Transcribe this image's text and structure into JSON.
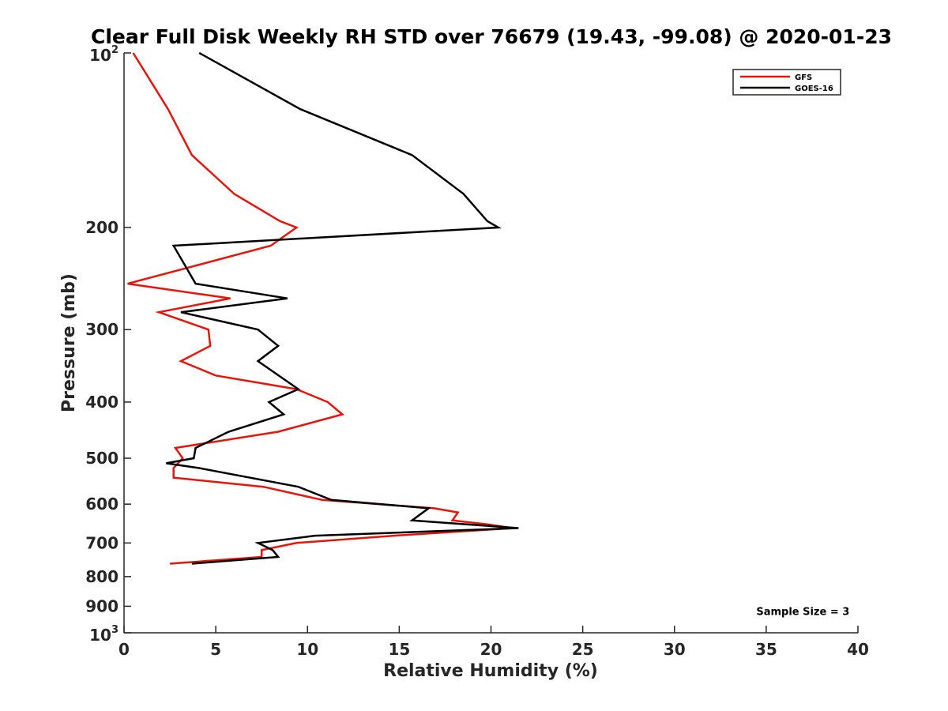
{
  "chart_data": {
    "type": "line",
    "title": "Clear Full Disk Weekly RH STD over 76679 (19.43, -99.08) @ 2020-01-23",
    "xlabel": "Relative Humidity (%)",
    "ylabel": "Pressure (mb)",
    "xlim": [
      0,
      40
    ],
    "ylim": [
      100,
      1000
    ],
    "y_scale": "log",
    "y_reversed": true,
    "grid": false,
    "legend_position": "top-right",
    "x_ticks": [
      0,
      5,
      10,
      15,
      20,
      25,
      30,
      35,
      40
    ],
    "x_tick_labels": [
      "0",
      "5",
      "10",
      "15",
      "20",
      "25",
      "30",
      "35",
      "40"
    ],
    "y_ticks": [
      {
        "value": 100,
        "base": "10",
        "exp": "2"
      },
      {
        "value": 200,
        "label": "200"
      },
      {
        "value": 300,
        "label": "300"
      },
      {
        "value": 400,
        "label": "400"
      },
      {
        "value": 500,
        "label": "500"
      },
      {
        "value": 600,
        "label": "600"
      },
      {
        "value": 700,
        "label": "700"
      },
      {
        "value": 800,
        "label": "800"
      },
      {
        "value": 900,
        "label": "900"
      },
      {
        "value": 1000,
        "base": "10",
        "exp": "3"
      }
    ],
    "series": [
      {
        "name": "GFS",
        "color": "#e8140a",
        "points": [
          [
            0.5,
            100
          ],
          [
            2.4,
            125
          ],
          [
            3.7,
            150
          ],
          [
            6.0,
            175
          ],
          [
            8.5,
            195
          ],
          [
            9.4,
            200
          ],
          [
            8.0,
            215
          ],
          [
            0.2,
            250
          ],
          [
            5.8,
            265
          ],
          [
            1.9,
            280
          ],
          [
            4.6,
            300
          ],
          [
            4.7,
            320
          ],
          [
            3.1,
            340
          ],
          [
            5.0,
            360
          ],
          [
            9.4,
            380
          ],
          [
            11.1,
            400
          ],
          [
            11.9,
            420
          ],
          [
            8.4,
            450
          ],
          [
            2.8,
            480
          ],
          [
            3.2,
            500
          ],
          [
            2.7,
            520
          ],
          [
            2.7,
            540
          ],
          [
            7.6,
            560
          ],
          [
            10.8,
            590
          ],
          [
            16.9,
            610
          ],
          [
            18.2,
            620
          ],
          [
            17.9,
            640
          ],
          [
            19.8,
            650
          ],
          [
            21.2,
            660
          ],
          [
            14.7,
            680
          ],
          [
            9.4,
            700
          ],
          [
            7.5,
            720
          ],
          [
            7.5,
            740
          ],
          [
            2.5,
            760
          ]
        ]
      },
      {
        "name": "GOES-16",
        "color": "#000000",
        "points": [
          [
            4.1,
            100
          ],
          [
            9.6,
            125
          ],
          [
            15.7,
            150
          ],
          [
            18.5,
            175
          ],
          [
            19.8,
            195
          ],
          [
            20.4,
            200
          ],
          [
            2.7,
            215
          ],
          [
            3.9,
            250
          ],
          [
            8.9,
            265
          ],
          [
            3.1,
            280
          ],
          [
            7.3,
            300
          ],
          [
            8.4,
            320
          ],
          [
            7.3,
            340
          ],
          [
            9.5,
            380
          ],
          [
            7.9,
            400
          ],
          [
            8.7,
            420
          ],
          [
            5.7,
            450
          ],
          [
            3.9,
            480
          ],
          [
            3.8,
            500
          ],
          [
            2.3,
            510
          ],
          [
            4.1,
            520
          ],
          [
            9.5,
            560
          ],
          [
            11.3,
            590
          ],
          [
            16.6,
            610
          ],
          [
            15.7,
            640
          ],
          [
            21.5,
            660
          ],
          [
            10.4,
            680
          ],
          [
            7.3,
            700
          ],
          [
            8.1,
            720
          ],
          [
            8.4,
            740
          ],
          [
            3.7,
            760
          ]
        ]
      }
    ],
    "annotations": [
      {
        "text": "Sample Size = 3",
        "x": 37,
        "y": 917
      }
    ]
  }
}
